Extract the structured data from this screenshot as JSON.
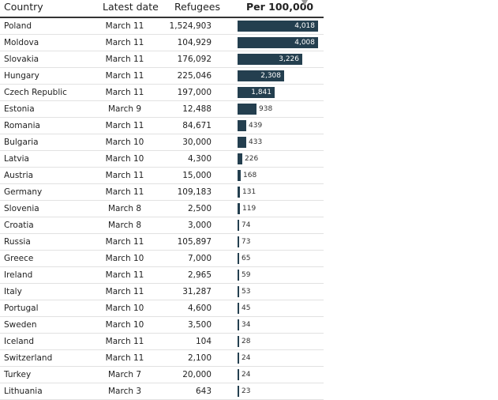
{
  "headers": {
    "country": "Country",
    "latest_date": "Latest date",
    "refugees": "Refugees",
    "per_100000": "Per 100,000"
  },
  "colors": {
    "bar": "#243f4f"
  },
  "max_per": 4018,
  "rows": [
    {
      "country": "Poland",
      "date": "March 11",
      "refugees": "1,524,903",
      "per": 4018,
      "per_label": "4,018"
    },
    {
      "country": "Moldova",
      "date": "March 11",
      "refugees": "104,929",
      "per": 4008,
      "per_label": "4,008"
    },
    {
      "country": "Slovakia",
      "date": "March 11",
      "refugees": "176,092",
      "per": 3226,
      "per_label": "3,226"
    },
    {
      "country": "Hungary",
      "date": "March 11",
      "refugees": "225,046",
      "per": 2308,
      "per_label": "2,308"
    },
    {
      "country": "Czech Republic",
      "date": "March 11",
      "refugees": "197,000",
      "per": 1841,
      "per_label": "1,841"
    },
    {
      "country": "Estonia",
      "date": "March 9",
      "refugees": "12,488",
      "per": 938,
      "per_label": "938"
    },
    {
      "country": "Romania",
      "date": "March 11",
      "refugees": "84,671",
      "per": 439,
      "per_label": "439"
    },
    {
      "country": "Bulgaria",
      "date": "March 10",
      "refugees": "30,000",
      "per": 433,
      "per_label": "433"
    },
    {
      "country": "Latvia",
      "date": "March 10",
      "refugees": "4,300",
      "per": 226,
      "per_label": "226"
    },
    {
      "country": "Austria",
      "date": "March 11",
      "refugees": "15,000",
      "per": 168,
      "per_label": "168"
    },
    {
      "country": "Germany",
      "date": "March 11",
      "refugees": "109,183",
      "per": 131,
      "per_label": "131"
    },
    {
      "country": "Slovenia",
      "date": "March 8",
      "refugees": "2,500",
      "per": 119,
      "per_label": "119"
    },
    {
      "country": "Croatia",
      "date": "March 8",
      "refugees": "3,000",
      "per": 74,
      "per_label": "74"
    },
    {
      "country": "Russia",
      "date": "March 11",
      "refugees": "105,897",
      "per": 73,
      "per_label": "73"
    },
    {
      "country": "Greece",
      "date": "March 10",
      "refugees": "7,000",
      "per": 65,
      "per_label": "65"
    },
    {
      "country": "Ireland",
      "date": "March 11",
      "refugees": "2,965",
      "per": 59,
      "per_label": "59"
    },
    {
      "country": "Italy",
      "date": "March 11",
      "refugees": "31,287",
      "per": 53,
      "per_label": "53"
    },
    {
      "country": "Portugal",
      "date": "March 10",
      "refugees": "4,600",
      "per": 45,
      "per_label": "45"
    },
    {
      "country": "Sweden",
      "date": "March 10",
      "refugees": "3,500",
      "per": 34,
      "per_label": "34"
    },
    {
      "country": "Iceland",
      "date": "March 11",
      "refugees": "104",
      "per": 28,
      "per_label": "28"
    },
    {
      "country": "Switzerland",
      "date": "March 11",
      "refugees": "2,100",
      "per": 24,
      "per_label": "24"
    },
    {
      "country": "Turkey",
      "date": "March 7",
      "refugees": "20,000",
      "per": 24,
      "per_label": "24"
    },
    {
      "country": "Lithuania",
      "date": "March 3",
      "refugees": "643",
      "per": 23,
      "per_label": "23"
    }
  ]
}
